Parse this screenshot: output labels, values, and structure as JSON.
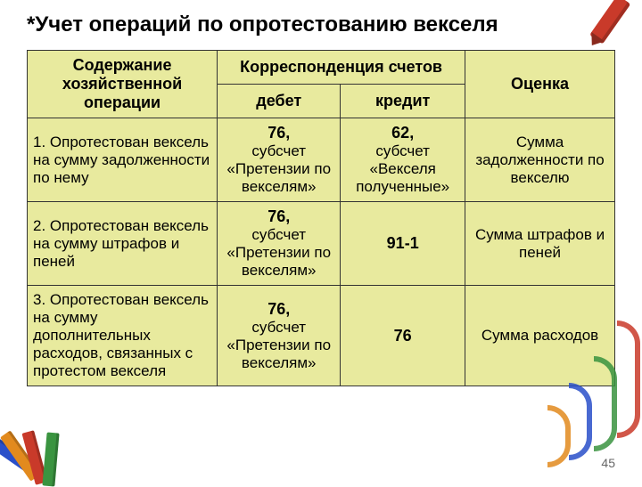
{
  "title": "*Учет операций по опротестованию векселя",
  "page_number": "45",
  "colors": {
    "cell_bg": "#e8ea9e",
    "border": "#333333",
    "text": "#000000"
  },
  "header": {
    "col_operation": "Содержание хозяйственной операции",
    "col_correspondence": "Корреспонденция счетов",
    "col_debit": "дебет",
    "col_credit": "кредит",
    "col_eval": "Оценка"
  },
  "rows": [
    {
      "op": "1. Опротестован вексель на сумму задолженности по нему",
      "debit_acct": "76,",
      "debit_sub": "субсчет «Претензии по векселям»",
      "credit_acct": "62,",
      "credit_sub": "субсчет «Векселя полученные»",
      "eval": "Сумма задолженности по векселю"
    },
    {
      "op": "2. Опротестован вексель на сумму штрафов и пеней",
      "debit_acct": "76,",
      "debit_sub": "субсчет «Претензии по векселям»",
      "credit_acct": "91-1",
      "credit_sub": "",
      "eval": "Сумма штрафов и пеней"
    },
    {
      "op": "3. Опротестован вексель на сумму дополнительных расходов, связанных с протестом векселя",
      "debit_acct": "76,",
      "debit_sub": "субсчет «Претензии по векселям»",
      "credit_acct": "76",
      "credit_sub": "",
      "eval": "Сумма расходов"
    }
  ]
}
